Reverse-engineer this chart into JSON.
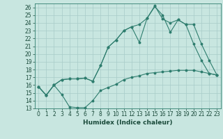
{
  "xlabel": "Humidex (Indice chaleur)",
  "xlim": [
    -0.5,
    23.5
  ],
  "ylim": [
    13,
    26.5
  ],
  "yticks": [
    13,
    14,
    15,
    16,
    17,
    18,
    19,
    20,
    21,
    22,
    23,
    24,
    25,
    26
  ],
  "xticks": [
    0,
    1,
    2,
    3,
    4,
    5,
    6,
    7,
    8,
    9,
    10,
    11,
    12,
    13,
    14,
    15,
    16,
    17,
    18,
    19,
    20,
    21,
    22,
    23
  ],
  "bg_color": "#c8e6e0",
  "grid_color": "#a8ccc8",
  "line_color": "#2e7d6e",
  "line1_x": [
    0,
    1,
    2,
    3,
    4,
    5,
    6,
    7,
    8,
    9,
    10,
    11,
    12,
    13,
    14,
    15,
    16,
    17,
    18,
    19,
    20,
    21,
    22,
    23
  ],
  "line1_y": [
    15.8,
    14.7,
    16.0,
    14.8,
    13.2,
    13.1,
    13.1,
    14.0,
    15.3,
    15.7,
    16.1,
    16.7,
    17.0,
    17.2,
    17.5,
    17.6,
    17.7,
    17.8,
    17.9,
    17.9,
    17.9,
    17.7,
    17.5,
    17.3
  ],
  "line2_x": [
    0,
    1,
    2,
    3,
    4,
    5,
    6,
    7,
    8,
    9,
    10,
    11,
    12,
    13,
    14,
    15,
    16,
    17,
    18,
    19,
    20,
    21,
    22,
    23
  ],
  "line2_y": [
    15.8,
    14.7,
    16.0,
    16.7,
    16.8,
    16.8,
    16.9,
    16.5,
    18.5,
    20.9,
    21.8,
    23.0,
    23.5,
    21.5,
    24.6,
    26.1,
    25.0,
    22.8,
    24.4,
    23.8,
    21.3,
    19.2,
    17.5,
    17.3
  ],
  "line3_x": [
    0,
    1,
    2,
    3,
    4,
    5,
    6,
    7,
    8,
    9,
    10,
    11,
    12,
    13,
    14,
    15,
    16,
    17,
    18,
    19,
    20,
    21,
    22,
    23
  ],
  "line3_y": [
    15.8,
    14.7,
    16.0,
    16.7,
    16.8,
    16.8,
    16.9,
    16.5,
    18.5,
    20.9,
    21.8,
    23.0,
    23.5,
    23.8,
    24.6,
    26.2,
    24.5,
    24.0,
    24.4,
    23.8,
    23.8,
    21.3,
    19.2,
    17.3
  ],
  "tick_fontsize": 5.5,
  "xlabel_fontsize": 6.5,
  "marker_size": 1.8,
  "line_width": 0.8
}
